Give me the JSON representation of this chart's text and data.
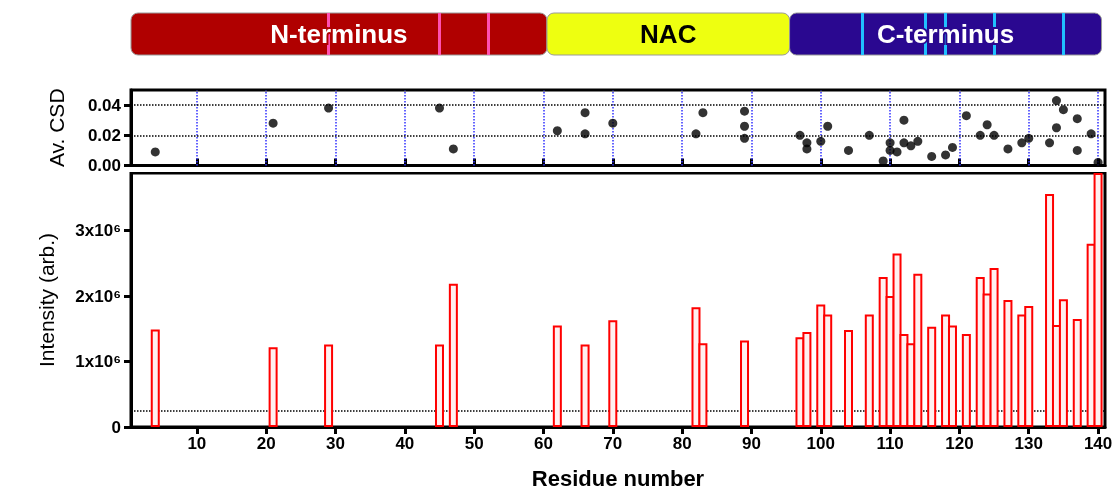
{
  "chart_data": [
    {
      "type": "bar",
      "orientation": "horizontal",
      "categories": [
        null
      ],
      "xlim": [
        0.5,
        141
      ],
      "tick_labels": false,
      "series": [
        {
          "name": "N-terminus",
          "color": "#b00000",
          "base": [
            0.5
          ],
          "values": [
            60
          ]
        },
        {
          "name": "NAC",
          "color": "#eeff10",
          "base": [
            60.5
          ],
          "values": [
            35
          ]
        },
        {
          "name": "C-terminus",
          "color": "#2a0890",
          "base": [
            95.5
          ],
          "values": [
            45
          ]
        }
      ],
      "ref_lines": [
        {
          "axis": "x",
          "value": 29,
          "color": "#ff50b0"
        },
        {
          "axis": "x",
          "value": 45,
          "color": "#ff50b0"
        },
        {
          "axis": "x",
          "value": 52,
          "color": "#ff50b0"
        },
        {
          "axis": "x",
          "value": 106,
          "color": "#20c0ff"
        },
        {
          "axis": "x",
          "value": 115,
          "color": "#20c0ff"
        },
        {
          "axis": "x",
          "value": 118,
          "color": "#20c0ff"
        },
        {
          "axis": "x",
          "value": 125,
          "color": "#20c0ff"
        },
        {
          "axis": "x",
          "value": 135,
          "color": "#20c0ff"
        }
      ]
    },
    {
      "type": "scatter",
      "ylabel": "Av. CSD",
      "marker": "circle",
      "grid": true,
      "tick_labels": "y",
      "xlim": [
        0.5,
        141
      ],
      "xticks": [
        10,
        20,
        30,
        40,
        50,
        60,
        70,
        80,
        90,
        100,
        110,
        120,
        130,
        140
      ],
      "ylim": [
        0,
        0.05
      ],
      "yticks": [
        {
          "value": 0,
          "label": "0.00"
        },
        {
          "value": 0.02,
          "label": "0.02"
        },
        {
          "value": 0.04,
          "label": "0.04"
        }
      ],
      "series": [
        {
          "color": "#000000",
          "x": [
            4,
            21,
            29,
            45,
            47,
            62,
            66,
            66,
            70,
            82,
            83,
            89,
            89,
            89,
            97,
            98,
            98,
            100,
            101,
            104,
            107,
            109,
            110,
            110,
            111,
            112,
            112,
            113,
            114,
            116,
            118,
            119,
            121,
            123,
            124,
            125,
            127,
            129,
            130,
            133,
            134,
            134,
            135,
            137,
            137,
            139,
            140
          ],
          "values": [
            0.009,
            0.028,
            0.038,
            0.038,
            0.011,
            0.023,
            0.035,
            0.021,
            0.028,
            0.021,
            0.035,
            0.036,
            0.026,
            0.018,
            0.02,
            0.015,
            0.011,
            0.016,
            0.026,
            0.01,
            0.02,
            0.003,
            0.015,
            0.01,
            0.009,
            0.03,
            0.015,
            0.013,
            0.016,
            0.006,
            0.007,
            0.012,
            0.033,
            0.02,
            0.027,
            0.02,
            0.011,
            0.015,
            0.018,
            0.015,
            0.043,
            0.025,
            0.037,
            0.031,
            0.01,
            0.021,
            0.002
          ]
        }
      ]
    },
    {
      "type": "bar",
      "xlabel": "Residue number",
      "ylabel": "Intensity (arb.)",
      "xlim": [
        0.5,
        141
      ],
      "xticks": [
        10,
        20,
        30,
        40,
        50,
        60,
        70,
        80,
        90,
        100,
        110,
        120,
        130,
        140
      ],
      "ylim": [
        0,
        3880000
      ],
      "yticks": [
        0,
        {
          "value": 1000000,
          "label": "1x10⁶"
        },
        {
          "value": 2000000,
          "label": "2x10⁶"
        },
        {
          "value": 3000000,
          "label": "3x10⁶"
        }
      ],
      "ref_lines": [
        {
          "axis": "y",
          "value": 245000,
          "line_style": "dotted",
          "color": "#000000"
        }
      ],
      "series": [
        {
          "color": "#ff0000",
          "x": [
            4,
            21,
            29,
            45,
            47,
            62,
            66,
            70,
            82,
            83,
            89,
            97,
            98,
            100,
            101,
            104,
            107,
            109,
            110,
            111,
            112,
            113,
            114,
            116,
            118,
            119,
            121,
            123,
            124,
            125,
            127,
            129,
            130,
            133,
            134,
            135,
            137,
            139,
            140
          ],
          "values": [
            1490000,
            1220000,
            1260000,
            1260000,
            2190000,
            1550000,
            1260000,
            1630000,
            1830000,
            1280000,
            1320000,
            1370000,
            1450000,
            1870000,
            1720000,
            1480000,
            1720000,
            2290000,
            2000000,
            2650000,
            1420000,
            1280000,
            2340000,
            1530000,
            1720000,
            1550000,
            1420000,
            2290000,
            2040000,
            2430000,
            1940000,
            1720000,
            1850000,
            3560000,
            1560000,
            1950000,
            1650000,
            2800000,
            3880000
          ]
        }
      ]
    }
  ]
}
